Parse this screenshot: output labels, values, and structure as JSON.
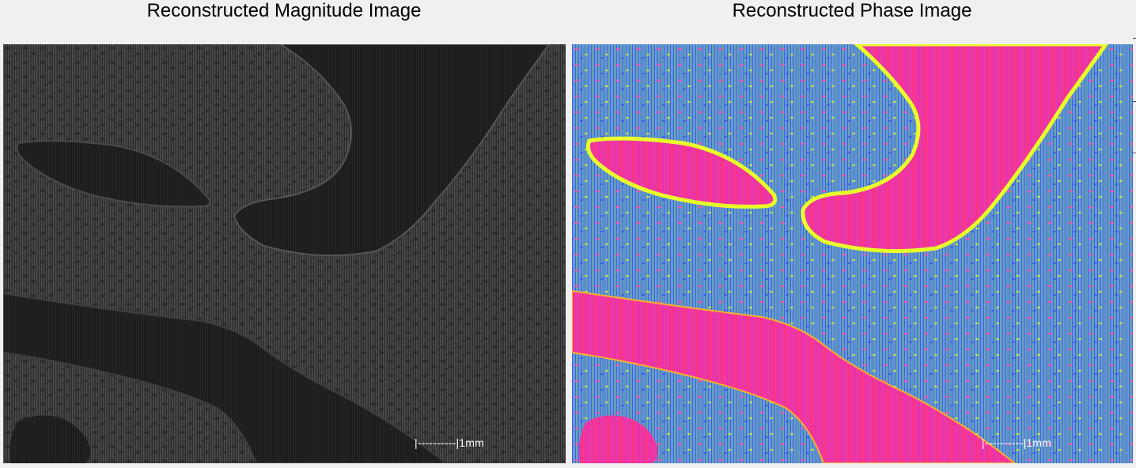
{
  "panels": {
    "magnitude": {
      "title": "Reconstructed Magnitude Image",
      "scalebar_label": "|----------|1mm"
    },
    "phase": {
      "title": "Reconstructed Phase Image",
      "scalebar_label": "|----------|1mm"
    }
  },
  "colors": {
    "window_background": "#f0f0f0",
    "magnitude_tissue": "#3a3a3a",
    "magnitude_vessel": "#1a1a1a",
    "phase_tissue": "#4a7fe0",
    "phase_vessel": "#ff2a8a",
    "phase_vessel_edge": "#e8ff2a",
    "scalebar_text": "#ffffff"
  }
}
